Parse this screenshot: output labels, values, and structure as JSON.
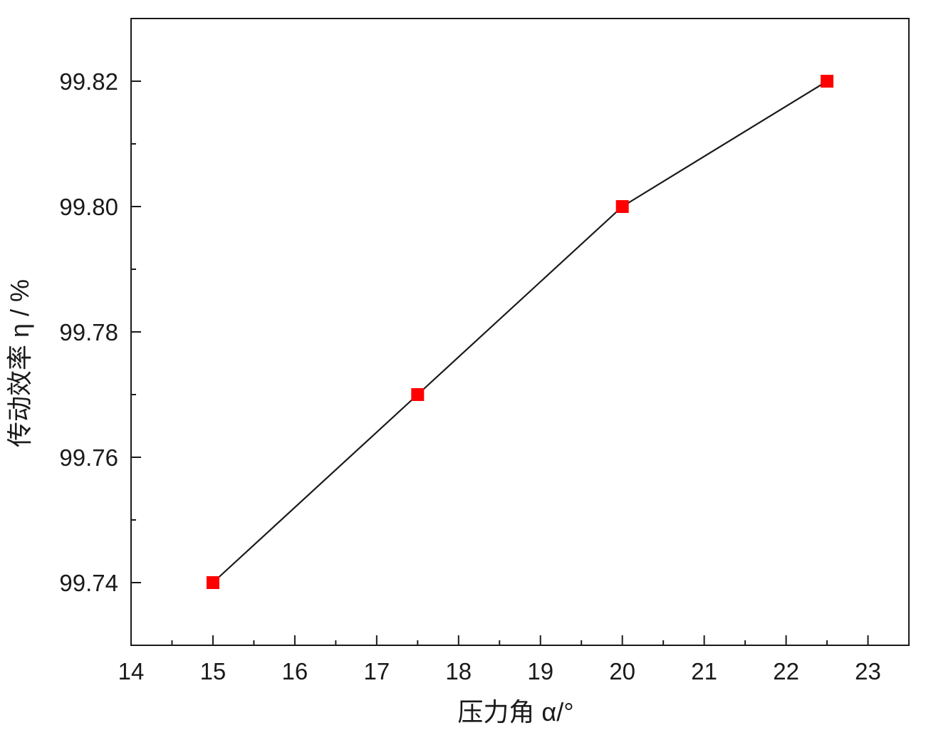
{
  "chart_data": {
    "type": "line",
    "title": "",
    "xlabel": "压力角 α/°",
    "ylabel": "传动效率 η / %",
    "xlim": [
      14,
      23.5
    ],
    "ylim": [
      99.73,
      99.83
    ],
    "x_ticks": [
      "14",
      "15",
      "16",
      "17",
      "18",
      "19",
      "20",
      "21",
      "22",
      "23"
    ],
    "y_ticks": [
      "99.74",
      "99.76",
      "99.78",
      "99.80",
      "99.82"
    ],
    "grid": false,
    "legend": "none",
    "series": [
      {
        "x": [
          15,
          17.5,
          20,
          22.5
        ],
        "y": [
          99.74,
          99.77,
          99.8,
          99.82
        ],
        "line_color": "#1a1a1a",
        "marker": "square",
        "marker_color": "#ff0000"
      }
    ]
  }
}
